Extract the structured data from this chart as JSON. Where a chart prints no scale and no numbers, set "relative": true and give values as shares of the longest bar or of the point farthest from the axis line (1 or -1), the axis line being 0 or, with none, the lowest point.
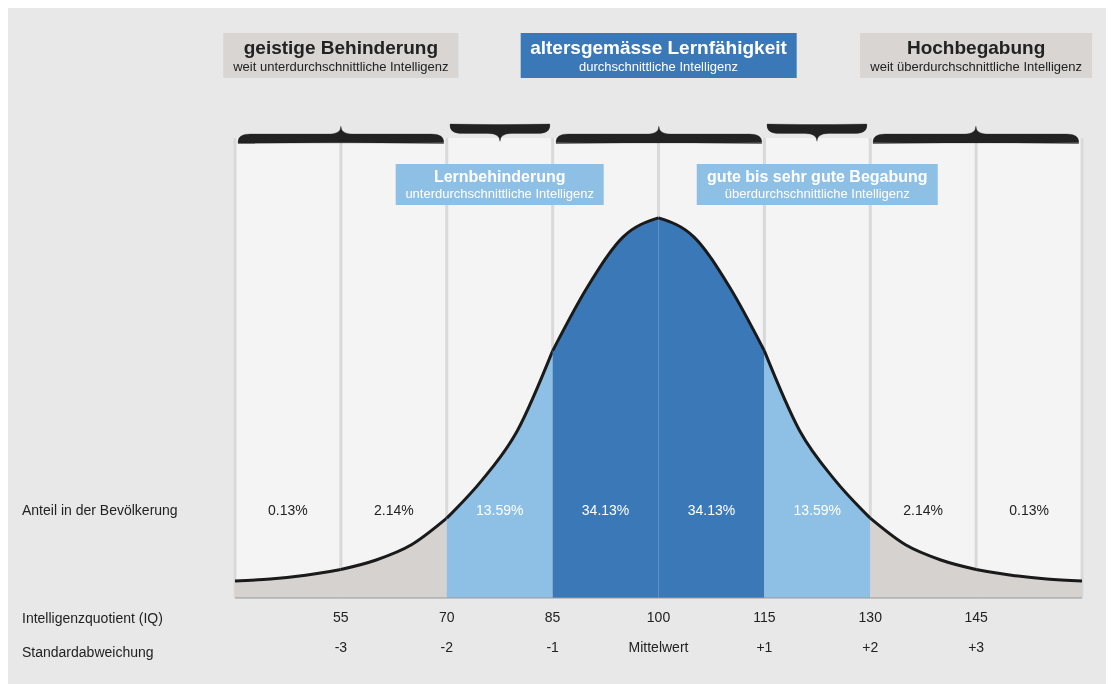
{
  "chart_data": {
    "type": "area",
    "relative": true,
    "xlim": [
      40,
      160
    ],
    "xticks": [
      55,
      70,
      85,
      100,
      115,
      130,
      145
    ],
    "x2lim": [
      -4,
      4
    ],
    "x2ticks": [
      -3,
      -2,
      -1,
      {
        "value": 0,
        "label": "Mittelwert"
      },
      {
        "value": 1,
        "label": "+1"
      },
      {
        "value": 2,
        "label": "+2"
      },
      {
        "value": 3,
        "label": "+3"
      }
    ],
    "grid": "x",
    "series": [
      {
        "color": "#d6d2cf",
        "x": [
          40,
          45,
          50,
          55
        ],
        "values": [
          0.045,
          0.05,
          0.06,
          0.075
        ]
      },
      {
        "color": "#d6d2cf",
        "x": [
          55,
          60,
          65,
          70
        ],
        "values": [
          0.075,
          0.1,
          0.14,
          0.21
        ]
      },
      {
        "color": "#8ec0e6",
        "x": [
          70,
          75,
          80,
          85
        ],
        "values": [
          0.21,
          0.31,
          0.44,
          0.65
        ]
      },
      {
        "color": "#3a78b8",
        "x": [
          85,
          90,
          95,
          100
        ],
        "values": [
          0.65,
          0.82,
          0.95,
          1
        ]
      },
      {
        "color": "#3a78b8",
        "x": [
          100,
          105,
          110,
          115
        ],
        "values": [
          1,
          0.95,
          0.82,
          0.65
        ]
      },
      {
        "color": "#8ec0e6",
        "x": [
          115,
          120,
          125,
          130
        ],
        "values": [
          0.65,
          0.44,
          0.31,
          0.21
        ]
      },
      {
        "color": "#d6d2cf",
        "x": [
          130,
          135,
          140,
          145
        ],
        "values": [
          0.21,
          0.14,
          0.1,
          0.075
        ]
      },
      {
        "color": "#d6d2cf",
        "x": [
          145,
          150,
          155,
          160
        ],
        "values": [
          0.075,
          0.06,
          0.05,
          0.045
        ]
      }
    ],
    "annotations": [
      "Anteil in der Bevölkerung",
      "Intelligenzquotient (IQ)",
      "Standardabweichung",
      "0.13%",
      "2.14%",
      "13.59%",
      "34.13%",
      "34.13%",
      "13.59%",
      "2.14%",
      "0.13%",
      "geistige Behinderung\nweit unterdurchschnittliche Intelligenz",
      "Lernbehinderung\nunterdurchschnittliche Intelligenz",
      "altersgemässe Lernfähigkeit\ndurchschnittliche Intelligenz",
      "gute bis sehr gute Begabung\nüberdurchschnittliche Intelligenz",
      "Hochbegabung\nweit überdurchschnittliche Intelligenz"
    ]
  }
}
